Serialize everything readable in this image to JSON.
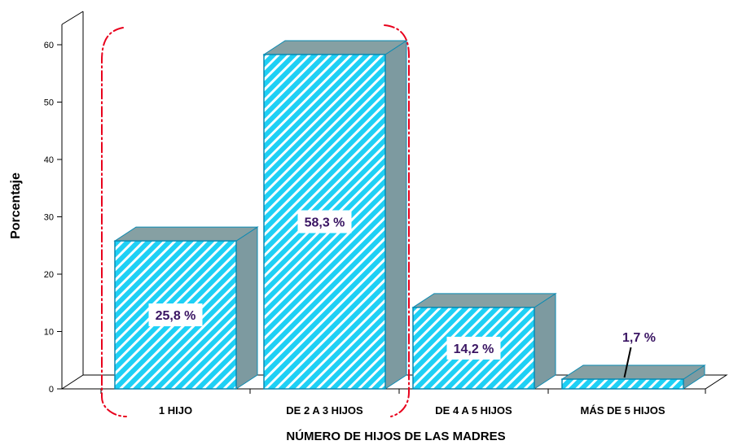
{
  "chart_data": {
    "type": "bar",
    "title": "",
    "xlabel": "NÚMERO DE HIJOS DE LAS MADRES",
    "ylabel": "Porcentaje",
    "ylim": [
      0,
      60
    ],
    "yticks": [
      0,
      10,
      20,
      30,
      40,
      50,
      60
    ],
    "categories": [
      "1 HIJO",
      "DE 2 A 3 HIJOS",
      "DE 4 A 5 HIJOS",
      "MÁS DE 5 HIJOS"
    ],
    "values": [
      25.8,
      58.3,
      14.2,
      1.7
    ],
    "data_labels": [
      "25,8 %",
      "58,3 %",
      "14,2 %",
      "1,7 %"
    ],
    "grid": false,
    "style": "3d-hatched-bars",
    "highlight": {
      "categories": [
        "1 HIJO",
        "DE 2 A 3 HIJOS"
      ],
      "style": "red dash-dot rounded outline"
    },
    "colors": {
      "bar_face": "#1ed0f5",
      "bar_hatch": "#ffffff",
      "bar_side": "#7d9aa0",
      "bar_top": "#86a0a3",
      "bar_edge": "#0a8ab2",
      "data_label_text": "#3a1563",
      "highlight_outline": "#e8001c"
    }
  }
}
